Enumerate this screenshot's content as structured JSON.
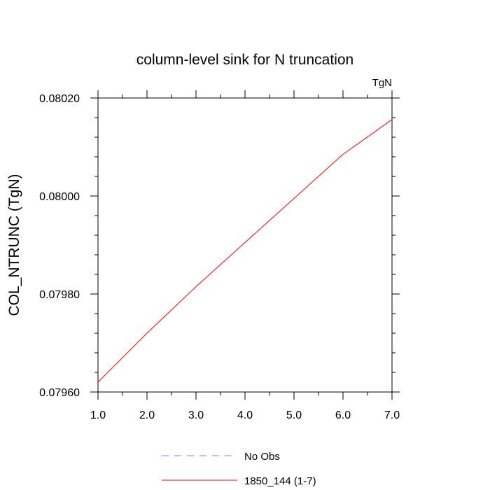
{
  "chart_data": {
    "type": "line",
    "title": "column-level sink for N truncation",
    "units_label": "TgN",
    "ylabel": "COL_NTRUNC  (TgN)",
    "xlabel": "",
    "xlim": [
      1.0,
      7.0
    ],
    "ylim": [
      0.0796,
      0.0802
    ],
    "x_ticks": [
      "1.0",
      "2.0",
      "3.0",
      "4.0",
      "5.0",
      "6.0",
      "7.0"
    ],
    "y_ticks": [
      "0.07960",
      "0.07980",
      "0.08000",
      "0.08020"
    ],
    "x_tick_values": [
      1,
      2,
      3,
      4,
      5,
      6,
      7
    ],
    "y_tick_values": [
      0.0796,
      0.0798,
      0.08,
      0.0802
    ],
    "grid": false,
    "legend_placement": "bottom-center",
    "series": [
      {
        "name": "1850_144 (1-7)",
        "color": "#ff0000",
        "dash": "solid",
        "x": [
          1,
          2,
          3,
          4,
          5,
          6,
          7
        ],
        "values": [
          0.07962,
          0.07972,
          0.079815,
          0.079905,
          0.079995,
          0.080085,
          0.080156
        ]
      }
    ],
    "legend": [
      {
        "label": "No Obs",
        "color": "#8080ff",
        "dash": "dashed"
      },
      {
        "label": "1850_144 (1-7)",
        "color": "#ff0000",
        "dash": "solid"
      }
    ]
  }
}
